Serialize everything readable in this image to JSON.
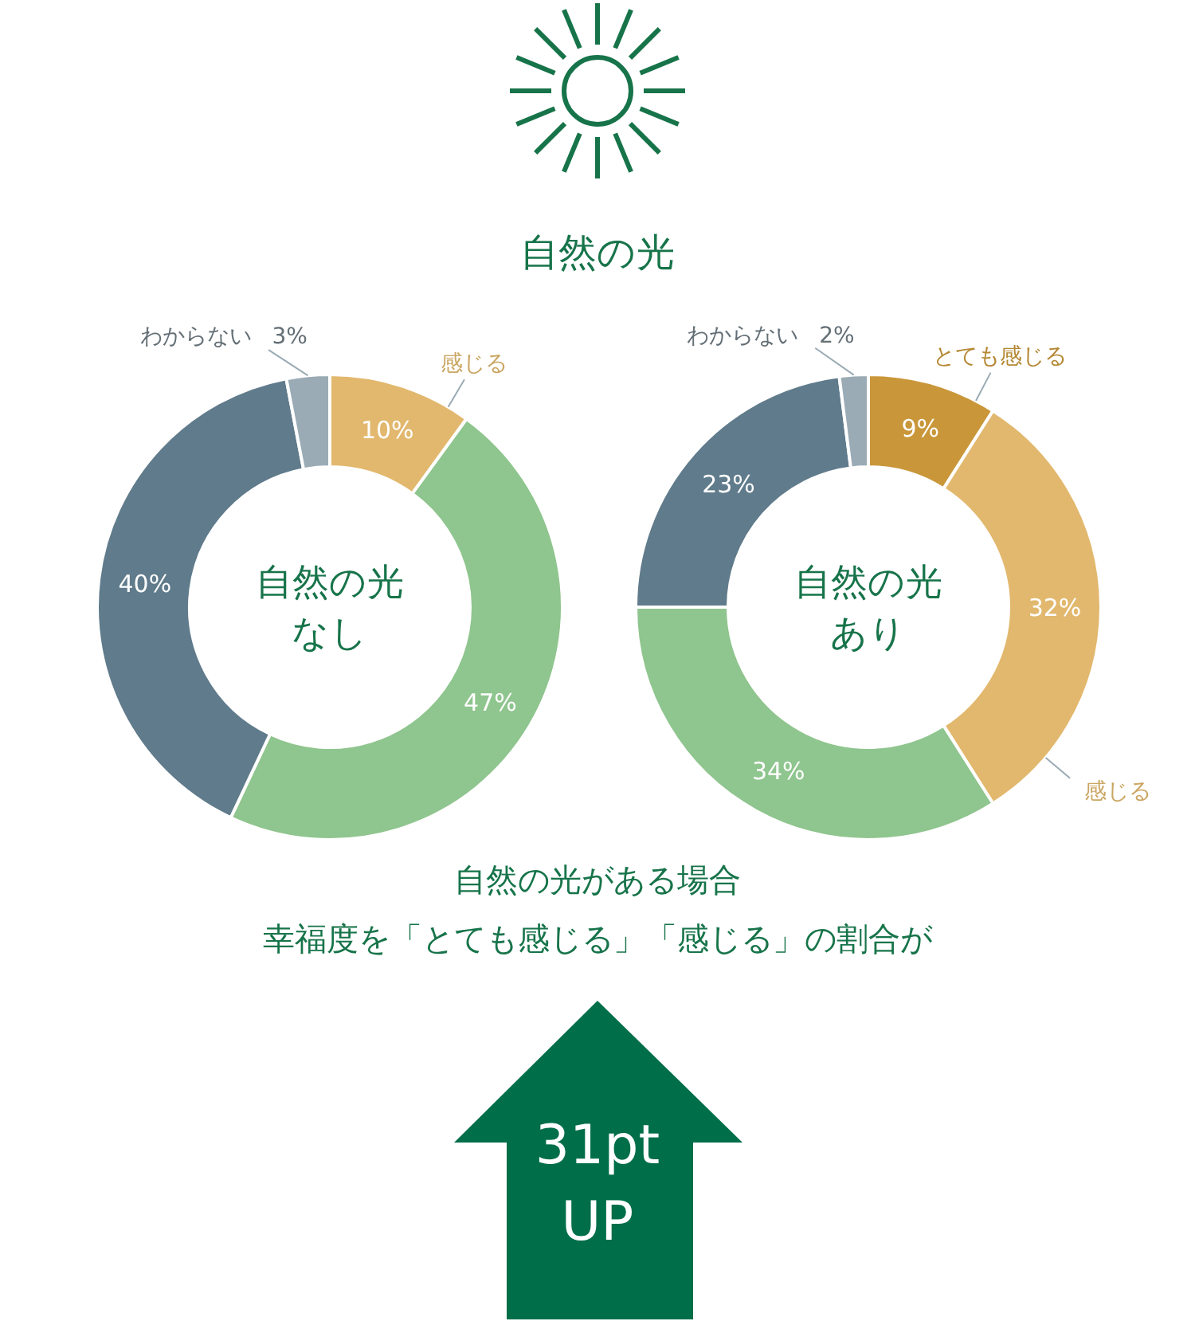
{
  "chart_data": [
    {
      "type": "donut",
      "title": "自然の光",
      "annotations": [
        "自然の光",
        "なし"
      ],
      "categories": [
        "感じる",
        null,
        null,
        "わからない"
      ],
      "values": [
        10,
        47,
        40,
        3
      ],
      "value_labels": [
        "10%",
        "47%",
        "40%",
        "3%"
      ],
      "colors": [
        "#e2b86e",
        "#8fc58e",
        "#607b8b",
        "#9aabb5"
      ]
    },
    {
      "type": "donut",
      "annotations": [
        "自然の光",
        "あり"
      ],
      "categories": [
        "とても感じる",
        "感じる",
        null,
        null,
        "わからない"
      ],
      "values": [
        9,
        32,
        34,
        23,
        2
      ],
      "value_labels": [
        "9%",
        "32%",
        "34%",
        "23%",
        "2%"
      ],
      "colors": [
        "#c9973a",
        "#e2b86e",
        "#8fc58e",
        "#607b8b",
        "#9aabb5"
      ]
    },
    {
      "type": "other",
      "annotations": [
        "自然の光がある場合",
        "幸福度を「とても感じる」「感じる」の割合が",
        "31pt\nUP"
      ]
    }
  ]
}
